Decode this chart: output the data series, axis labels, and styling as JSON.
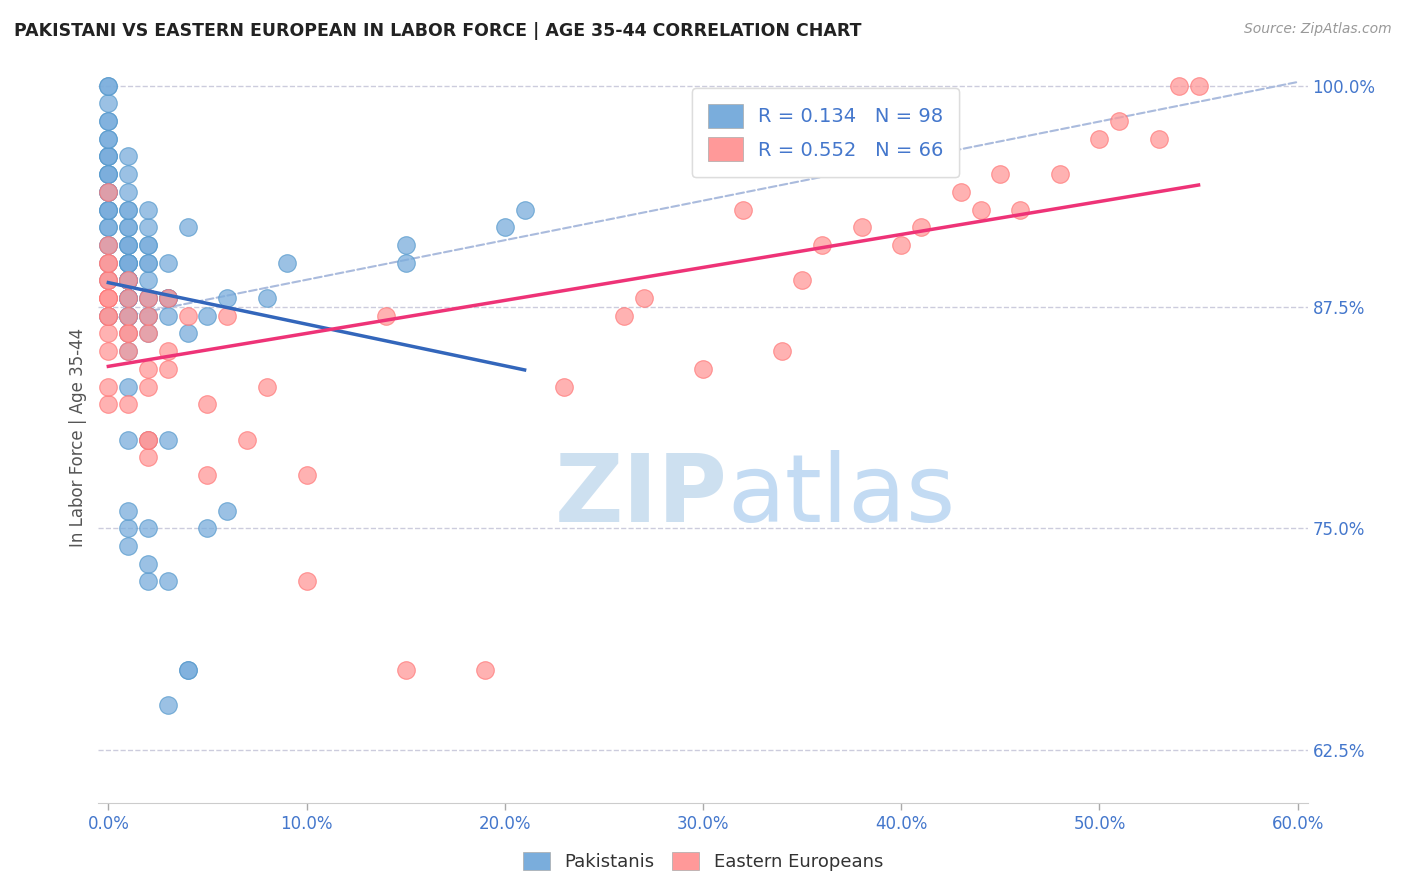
{
  "title": "PAKISTANI VS EASTERN EUROPEAN IN LABOR FORCE | AGE 35-44 CORRELATION CHART",
  "source": "Source: ZipAtlas.com",
  "ylabel": "In Labor Force | Age 35-44",
  "watermark_zip": "ZIP",
  "watermark_atlas": "atlas",
  "xlim": [
    -0.005,
    0.605
  ],
  "ylim": [
    0.595,
    1.008
  ],
  "xticks": [
    0.0,
    0.1,
    0.2,
    0.3,
    0.4,
    0.5,
    0.6
  ],
  "ytick_labeled": [
    0.625,
    0.75,
    0.875,
    1.0
  ],
  "ytick_gridlines": [
    0.625,
    0.75,
    0.875,
    1.0
  ],
  "blue_scatter_color": "#7AADDC",
  "blue_scatter_edge": "#5599CC",
  "pink_scatter_color": "#FF9999",
  "pink_scatter_edge": "#FF7777",
  "blue_line_color": "#3366BB",
  "pink_line_color": "#EE3377",
  "dashed_line_color": "#AABBDD",
  "legend_R_blue": "0.134",
  "legend_N_blue": "98",
  "legend_R_pink": "0.552",
  "legend_N_pink": "66",
  "legend_label_blue": "Pakistanis",
  "legend_label_pink": "Eastern Europeans",
  "title_color": "#222222",
  "tick_color": "#4477CC",
  "background_color": "#FFFFFF",
  "pakistani_x": [
    0.0,
    0.0,
    0.0,
    0.0,
    0.0,
    0.0,
    0.0,
    0.0,
    0.0,
    0.0,
    0.0,
    0.0,
    0.0,
    0.0,
    0.0,
    0.0,
    0.0,
    0.0,
    0.0,
    0.0,
    0.0,
    0.0,
    0.0,
    0.0,
    0.0,
    0.0,
    0.0,
    0.01,
    0.01,
    0.01,
    0.01,
    0.01,
    0.01,
    0.01,
    0.01,
    0.01,
    0.01,
    0.01,
    0.01,
    0.01,
    0.01,
    0.01,
    0.01,
    0.01,
    0.01,
    0.01,
    0.01,
    0.01,
    0.01,
    0.01,
    0.01,
    0.01,
    0.01,
    0.01,
    0.01,
    0.01,
    0.01,
    0.01,
    0.01,
    0.01,
    0.02,
    0.02,
    0.02,
    0.02,
    0.02,
    0.02,
    0.02,
    0.02,
    0.02,
    0.02,
    0.02,
    0.02,
    0.02,
    0.02,
    0.02,
    0.02,
    0.03,
    0.03,
    0.03,
    0.03,
    0.03,
    0.03,
    0.03,
    0.03,
    0.04,
    0.04,
    0.04,
    0.04,
    0.05,
    0.05,
    0.06,
    0.06,
    0.08,
    0.09,
    0.15,
    0.15,
    0.2,
    0.21
  ],
  "pakistani_y": [
    0.87,
    0.87,
    0.89,
    0.9,
    0.91,
    0.91,
    0.92,
    0.92,
    0.93,
    0.93,
    0.93,
    0.94,
    0.94,
    0.94,
    0.95,
    0.95,
    0.95,
    0.96,
    0.96,
    0.96,
    0.97,
    0.97,
    0.98,
    0.98,
    0.99,
    1.0,
    1.0,
    0.74,
    0.75,
    0.76,
    0.8,
    0.83,
    0.85,
    0.86,
    0.87,
    0.87,
    0.87,
    0.88,
    0.88,
    0.88,
    0.88,
    0.89,
    0.89,
    0.89,
    0.89,
    0.89,
    0.9,
    0.9,
    0.9,
    0.9,
    0.91,
    0.91,
    0.91,
    0.92,
    0.92,
    0.93,
    0.93,
    0.94,
    0.95,
    0.96,
    0.72,
    0.73,
    0.75,
    0.8,
    0.86,
    0.87,
    0.87,
    0.88,
    0.88,
    0.89,
    0.9,
    0.9,
    0.91,
    0.91,
    0.92,
    0.93,
    0.65,
    0.72,
    0.8,
    0.87,
    0.88,
    0.88,
    0.88,
    0.9,
    0.67,
    0.67,
    0.86,
    0.92,
    0.75,
    0.87,
    0.76,
    0.88,
    0.88,
    0.9,
    0.9,
    0.91,
    0.92,
    0.93
  ],
  "eastern_x": [
    0.0,
    0.0,
    0.0,
    0.0,
    0.0,
    0.0,
    0.0,
    0.0,
    0.0,
    0.0,
    0.0,
    0.0,
    0.0,
    0.0,
    0.0,
    0.0,
    0.01,
    0.01,
    0.01,
    0.01,
    0.01,
    0.01,
    0.01,
    0.02,
    0.02,
    0.02,
    0.02,
    0.02,
    0.02,
    0.02,
    0.02,
    0.03,
    0.03,
    0.03,
    0.04,
    0.05,
    0.05,
    0.06,
    0.07,
    0.08,
    0.1,
    0.1,
    0.14,
    0.15,
    0.19,
    0.23,
    0.26,
    0.27,
    0.3,
    0.32,
    0.34,
    0.35,
    0.36,
    0.38,
    0.4,
    0.41,
    0.43,
    0.44,
    0.45,
    0.46,
    0.48,
    0.5,
    0.51,
    0.53,
    0.54,
    0.55
  ],
  "eastern_y": [
    0.82,
    0.83,
    0.85,
    0.86,
    0.87,
    0.87,
    0.88,
    0.88,
    0.88,
    0.88,
    0.89,
    0.89,
    0.9,
    0.9,
    0.91,
    0.94,
    0.82,
    0.85,
    0.86,
    0.86,
    0.87,
    0.88,
    0.89,
    0.79,
    0.8,
    0.8,
    0.83,
    0.84,
    0.86,
    0.87,
    0.88,
    0.84,
    0.85,
    0.88,
    0.87,
    0.78,
    0.82,
    0.87,
    0.8,
    0.83,
    0.72,
    0.78,
    0.87,
    0.67,
    0.67,
    0.83,
    0.87,
    0.88,
    0.84,
    0.93,
    0.85,
    0.89,
    0.91,
    0.92,
    0.91,
    0.92,
    0.94,
    0.93,
    0.95,
    0.93,
    0.95,
    0.97,
    0.98,
    0.97,
    1.0,
    1.0
  ],
  "dashed_line_x": [
    0.0,
    0.6
  ],
  "dashed_line_y": [
    0.868,
    1.002
  ]
}
